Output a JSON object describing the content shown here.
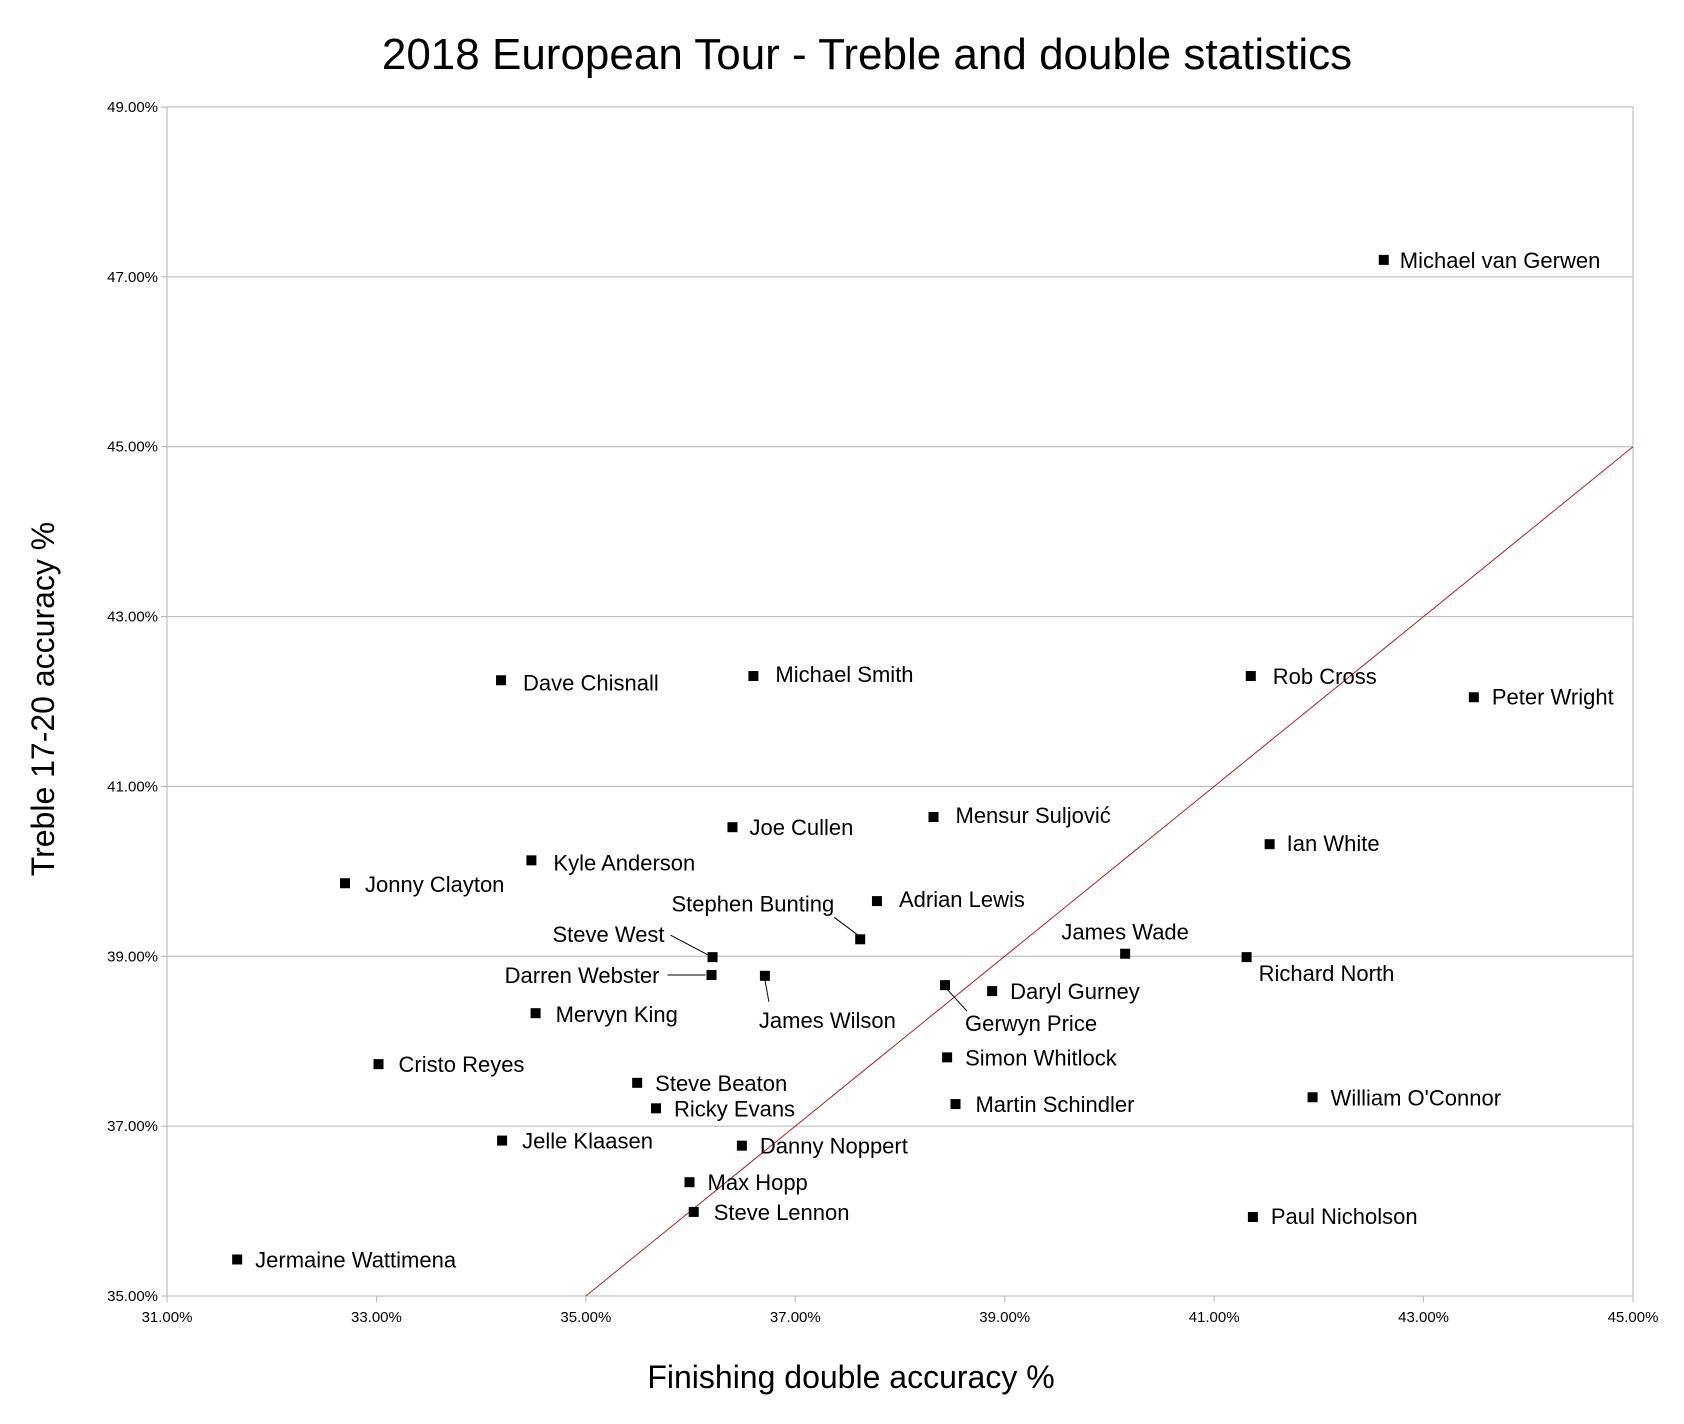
{
  "chart_data": {
    "type": "scatter",
    "title": "2018 European Tour - Treble and double statistics",
    "xlabel": "Finishing double accuracy %",
    "ylabel": "Treble 17-20 accuracy %",
    "xlim": [
      31,
      45
    ],
    "ylim": [
      35,
      49
    ],
    "x_ticks": [
      "31.00%",
      "33.00%",
      "35.00%",
      "37.00%",
      "39.00%",
      "41.00%",
      "43.00%",
      "45.00%"
    ],
    "y_ticks": [
      "35.00%",
      "37.00%",
      "39.00%",
      "41.00%",
      "43.00%",
      "45.00%",
      "47.00%",
      "49.00%"
    ],
    "grid": "horizontal",
    "reference_line": {
      "from": [
        35,
        35
      ],
      "to": [
        45,
        45
      ],
      "color": "#b22222"
    },
    "points": [
      {
        "name": "Michael van Gerwen",
        "x": 42.62,
        "y": 47.2
      },
      {
        "name": "Dave Chisnall",
        "x": 34.19,
        "y": 42.25
      },
      {
        "name": "Michael Smith",
        "x": 36.6,
        "y": 42.3
      },
      {
        "name": "Rob Cross",
        "x": 41.35,
        "y": 42.3
      },
      {
        "name": "Peter Wright",
        "x": 43.48,
        "y": 42.05
      },
      {
        "name": "Mensur Suljović",
        "x": 38.32,
        "y": 40.64
      },
      {
        "name": "Joe Cullen",
        "x": 36.4,
        "y": 40.52
      },
      {
        "name": "Ian White",
        "x": 41.53,
        "y": 40.32
      },
      {
        "name": "Kyle Anderson",
        "x": 34.48,
        "y": 40.13
      },
      {
        "name": "Jonny Clayton",
        "x": 32.7,
        "y": 39.86
      },
      {
        "name": "Adrian Lewis",
        "x": 37.78,
        "y": 39.65
      },
      {
        "name": "Stephen Bunting",
        "x": 37.62,
        "y": 39.2
      },
      {
        "name": "Steve West",
        "x": 36.21,
        "y": 38.99
      },
      {
        "name": "James Wade",
        "x": 40.15,
        "y": 39.03
      },
      {
        "name": "Richard North",
        "x": 41.31,
        "y": 38.99
      },
      {
        "name": "Darren Webster",
        "x": 36.2,
        "y": 38.78
      },
      {
        "name": "James Wilson",
        "x": 36.71,
        "y": 38.77
      },
      {
        "name": "Gerwyn Price",
        "x": 38.43,
        "y": 38.66
      },
      {
        "name": "Daryl Gurney",
        "x": 38.88,
        "y": 38.59
      },
      {
        "name": "Mervyn King",
        "x": 34.52,
        "y": 38.33
      },
      {
        "name": "Simon Whitlock",
        "x": 38.45,
        "y": 37.81
      },
      {
        "name": "Cristo Reyes",
        "x": 33.02,
        "y": 37.73
      },
      {
        "name": "Steve Beaton",
        "x": 35.49,
        "y": 37.51
      },
      {
        "name": "William O'Connor",
        "x": 41.94,
        "y": 37.34
      },
      {
        "name": "Martin Schindler",
        "x": 38.53,
        "y": 37.26
      },
      {
        "name": "Ricky Evans",
        "x": 35.67,
        "y": 37.21
      },
      {
        "name": "Jelle Klaasen",
        "x": 34.2,
        "y": 36.83
      },
      {
        "name": "Danny Noppert",
        "x": 36.49,
        "y": 36.77
      },
      {
        "name": "Max Hopp",
        "x": 35.99,
        "y": 36.34
      },
      {
        "name": "Steve Lennon",
        "x": 36.03,
        "y": 35.99
      },
      {
        "name": "Paul Nicholson",
        "x": 41.37,
        "y": 35.93
      },
      {
        "name": "Jermaine Wattimena",
        "x": 31.67,
        "y": 35.43
      }
    ]
  }
}
